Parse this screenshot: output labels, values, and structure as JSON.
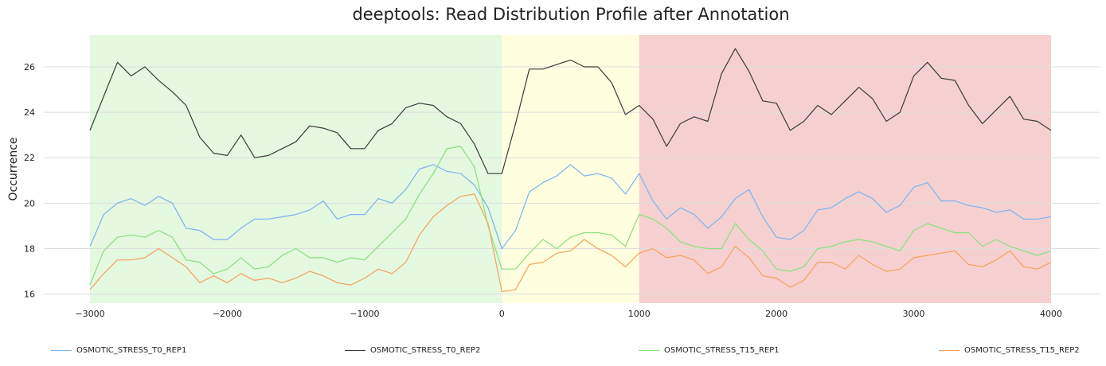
{
  "chart_data": {
    "type": "line",
    "title": "deeptools: Read Distribution Profile after Annotation",
    "xlabel": "",
    "ylabel": "Occurrence",
    "xlim": [
      -3000,
      4000
    ],
    "ylim": [
      15.6,
      27.4
    ],
    "xticks": [
      -3000,
      -2000,
      -1000,
      0,
      1000,
      2000,
      3000,
      4000
    ],
    "xtick_labels": [
      "−3000",
      "−2000",
      "−1000",
      "0",
      "1000",
      "2000",
      "3000",
      "4000"
    ],
    "yticks": [
      16,
      18,
      20,
      22,
      24,
      26
    ],
    "ytick_labels": [
      "16",
      "18",
      "20",
      "22",
      "24",
      "26"
    ],
    "grid": "horizontal",
    "legend_position": "bottom",
    "regions": [
      {
        "from": -3000,
        "to": 0,
        "color": "#e4f9e0"
      },
      {
        "from": 0,
        "to": 1000,
        "color": "#ffffe0"
      },
      {
        "from": 1000,
        "to": 4000,
        "color": "#f6d0d0"
      }
    ],
    "x": [
      -3000,
      -2900,
      -2800,
      -2700,
      -2600,
      -2500,
      -2400,
      -2300,
      -2200,
      -2100,
      -2000,
      -1900,
      -1800,
      -1700,
      -1600,
      -1500,
      -1400,
      -1300,
      -1200,
      -1100,
      -1000,
      -900,
      -800,
      -700,
      -600,
      -500,
      -400,
      -300,
      -200,
      -100,
      0,
      100,
      200,
      300,
      400,
      500,
      600,
      700,
      800,
      900,
      1000,
      1100,
      1200,
      1300,
      1400,
      1500,
      1600,
      1700,
      1800,
      1900,
      2000,
      2100,
      2200,
      2300,
      2400,
      2500,
      2600,
      2700,
      2800,
      2900,
      3000,
      3100,
      3200,
      3300,
      3400,
      3500,
      3600,
      3700,
      3800,
      3900,
      4000
    ],
    "series": [
      {
        "name": "OSMOTIC_STRESS_T0_REP1",
        "color": "#7ab3ef",
        "values": [
          18.1,
          19.5,
          20.0,
          20.2,
          19.9,
          20.3,
          20.0,
          18.9,
          18.8,
          18.4,
          18.4,
          18.9,
          19.3,
          19.3,
          19.4,
          19.5,
          19.7,
          20.1,
          19.3,
          19.5,
          19.5,
          20.2,
          20.0,
          20.6,
          21.5,
          21.7,
          21.4,
          21.3,
          20.8,
          19.8,
          18.0,
          18.8,
          20.5,
          20.9,
          21.2,
          21.7,
          21.2,
          21.3,
          21.1,
          20.4,
          21.3,
          20.1,
          19.3,
          19.8,
          19.5,
          18.9,
          19.4,
          20.2,
          20.6,
          19.4,
          18.5,
          18.4,
          18.8,
          19.7,
          19.8,
          20.2,
          20.5,
          20.2,
          19.6,
          19.9,
          20.7,
          20.9,
          20.1,
          20.1,
          19.9,
          19.8,
          19.6,
          19.7,
          19.3,
          19.3,
          19.4
        ]
      },
      {
        "name": "OSMOTIC_STRESS_T0_REP2",
        "color": "#3a3a3a",
        "values": [
          23.2,
          24.7,
          26.2,
          25.6,
          26.0,
          25.4,
          24.9,
          24.3,
          22.9,
          22.2,
          22.1,
          23.0,
          22.0,
          22.1,
          22.4,
          22.7,
          23.4,
          23.3,
          23.1,
          22.4,
          22.4,
          23.2,
          23.5,
          24.2,
          24.4,
          24.3,
          23.8,
          23.5,
          22.6,
          21.3,
          21.3,
          23.5,
          25.9,
          25.9,
          26.1,
          26.3,
          26.0,
          26.0,
          25.3,
          23.9,
          24.3,
          23.7,
          22.5,
          23.5,
          23.8,
          23.6,
          25.7,
          26.8,
          25.8,
          24.5,
          24.4,
          23.2,
          23.6,
          24.3,
          23.9,
          24.5,
          25.1,
          24.6,
          23.6,
          24.0,
          25.6,
          26.2,
          25.5,
          25.4,
          24.3,
          23.5,
          24.1,
          24.7,
          23.7,
          23.6,
          23.2
        ]
      },
      {
        "name": "OSMOTIC_STRESS_T15_REP1",
        "color": "#88e07a",
        "values": [
          16.4,
          17.9,
          18.5,
          18.6,
          18.5,
          18.8,
          18.5,
          17.5,
          17.4,
          16.9,
          17.1,
          17.6,
          17.1,
          17.2,
          17.7,
          18.0,
          17.6,
          17.6,
          17.4,
          17.6,
          17.5,
          18.1,
          18.7,
          19.3,
          20.4,
          21.3,
          22.4,
          22.5,
          21.6,
          19.0,
          17.1,
          17.1,
          17.8,
          18.4,
          18.0,
          18.5,
          18.7,
          18.7,
          18.6,
          18.1,
          19.5,
          19.3,
          18.9,
          18.3,
          18.1,
          18.0,
          18.0,
          19.1,
          18.4,
          17.9,
          17.1,
          17.0,
          17.2,
          18.0,
          18.1,
          18.3,
          18.4,
          18.3,
          18.1,
          17.9,
          18.8,
          19.1,
          18.9,
          18.7,
          18.7,
          18.1,
          18.4,
          18.1,
          17.9,
          17.7,
          17.9
        ]
      },
      {
        "name": "OSMOTIC_STRESS_T15_REP2",
        "color": "#f5a05a",
        "values": [
          16.2,
          16.9,
          17.5,
          17.5,
          17.6,
          18.0,
          17.6,
          17.2,
          16.5,
          16.8,
          16.5,
          16.9,
          16.6,
          16.7,
          16.5,
          16.7,
          17.0,
          16.8,
          16.5,
          16.4,
          16.7,
          17.1,
          16.9,
          17.4,
          18.6,
          19.4,
          19.9,
          20.3,
          20.4,
          19.1,
          16.1,
          16.2,
          17.3,
          17.4,
          17.8,
          17.9,
          18.4,
          18.0,
          17.7,
          17.2,
          17.8,
          18.0,
          17.6,
          17.7,
          17.5,
          16.9,
          17.2,
          18.1,
          17.6,
          16.8,
          16.7,
          16.3,
          16.6,
          17.4,
          17.4,
          17.1,
          17.7,
          17.3,
          17.0,
          17.1,
          17.6,
          17.7,
          17.8,
          17.9,
          17.3,
          17.2,
          17.5,
          17.9,
          17.2,
          17.1,
          17.4
        ]
      }
    ]
  }
}
